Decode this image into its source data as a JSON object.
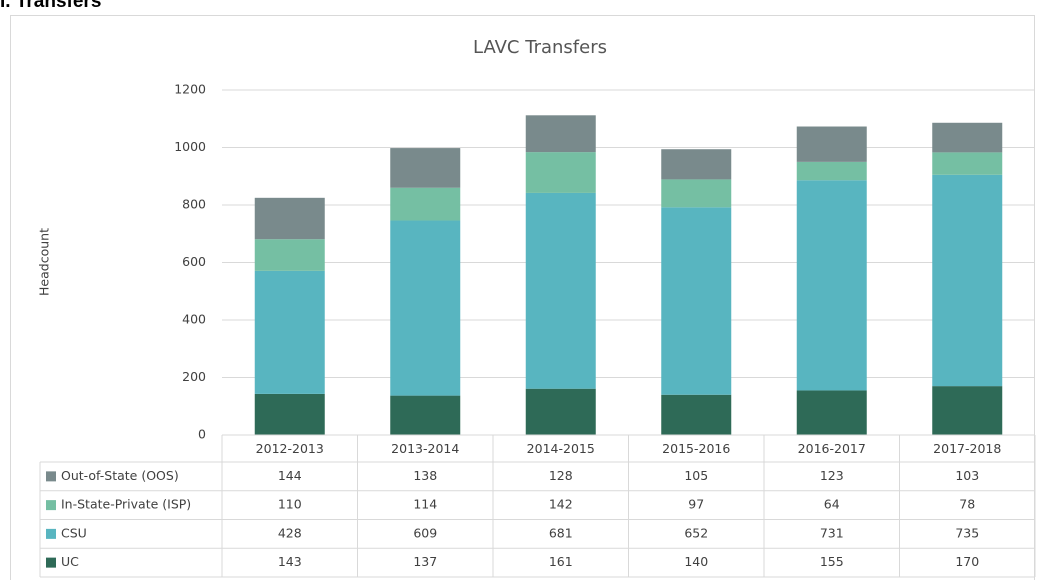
{
  "heading": "I. Transfers",
  "chart_data": {
    "type": "stacked_bar",
    "title": "LAVC Transfers",
    "y_label": "Headcount",
    "categories": [
      "2012-2013",
      "2013-2014",
      "2014-2015",
      "2015-2016",
      "2016-2017",
      "2017-2018"
    ],
    "series": [
      {
        "name": "UC",
        "color": "#2e6a57",
        "values": [
          143,
          137,
          161,
          140,
          155,
          170
        ]
      },
      {
        "name": "CSU",
        "color": "#58b5c0",
        "values": [
          428,
          609,
          681,
          652,
          731,
          735
        ]
      },
      {
        "name": "In-State-Private (ISP)",
        "color": "#75bfa3",
        "values": [
          110,
          114,
          142,
          97,
          64,
          78
        ]
      },
      {
        "name": "Out-of-State (OOS)",
        "color": "#798a8c",
        "values": [
          144,
          138,
          128,
          105,
          123,
          103
        ]
      }
    ],
    "ylim": [
      0,
      1200
    ],
    "yticks": [
      0,
      200,
      400,
      600,
      800,
      1000,
      1200
    ],
    "grid": true,
    "data_table": true
  }
}
